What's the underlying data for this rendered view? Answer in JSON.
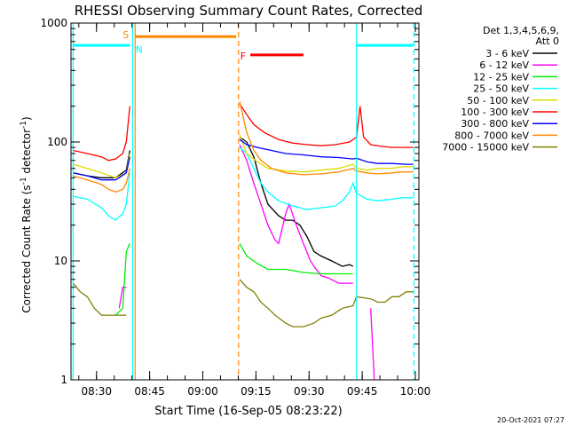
{
  "chart_data": {
    "type": "line",
    "title": "RHESSI Observing Summary Count Rates, Corrected",
    "xlabel": "Start Time (16-Sep-05 08:23:22)",
    "ylabel_main": "Corrected Count Rate (s",
    "ylabel_sup1": "-1",
    "ylabel_mid": " detector",
    "ylabel_sup2": "-1",
    "ylabel_end": ")",
    "yscale": "log",
    "ylim": [
      1,
      1000
    ],
    "xlim_minutes": [
      -0.6,
      97.6
    ],
    "y_ticks": [
      {
        "label": "1",
        "value": 1
      },
      {
        "label": "10",
        "value": 10
      },
      {
        "label": "100",
        "value": 100
      },
      {
        "label": "1000",
        "value": 1000
      }
    ],
    "x_ticks": [
      {
        "label": "08:30",
        "minute": 6.6
      },
      {
        "label": "08:45",
        "minute": 21.6
      },
      {
        "label": "09:00",
        "minute": 36.6
      },
      {
        "label": "09:15",
        "minute": 51.6
      },
      {
        "label": "09:30",
        "minute": 66.6
      },
      {
        "label": "09:45",
        "minute": 81.6
      },
      {
        "label": "10:00",
        "minute": 96.6
      }
    ],
    "legend_header": [
      "Det 1,3,4,5,6,9,",
      "Att 0"
    ],
    "series": [
      {
        "name": "3 - 6 keV",
        "color": "#000000",
        "segments": [
          [
            [
              0,
              55
            ],
            [
              4,
              52
            ],
            [
              8,
              50
            ],
            [
              12,
              50
            ],
            [
              15,
              58
            ],
            [
              16,
              85
            ]
          ],
          [
            [
              47,
              110
            ],
            [
              49,
              100
            ],
            [
              51,
              75
            ],
            [
              53,
              45
            ],
            [
              55,
              30
            ],
            [
              58,
              24
            ],
            [
              60,
              22
            ],
            [
              62,
              22
            ],
            [
              64,
              20
            ],
            [
              66,
              16
            ],
            [
              68,
              12
            ],
            [
              70,
              11
            ],
            [
              73,
              10
            ],
            [
              76,
              9
            ],
            [
              78,
              9.3
            ],
            [
              79,
              9
            ]
          ]
        ]
      },
      {
        "name": "6 - 12 keV",
        "color": "#ff00ff",
        "segments": [
          [
            [
              13,
              4
            ],
            [
              14,
              6
            ],
            [
              15,
              6
            ]
          ],
          [
            [
              47,
              95
            ],
            [
              49,
              70
            ],
            [
              51,
              45
            ],
            [
              53,
              30
            ],
            [
              55,
              20
            ],
            [
              57,
              15
            ],
            [
              58,
              14
            ],
            [
              60,
              25
            ],
            [
              61,
              30
            ],
            [
              63,
              20
            ],
            [
              65,
              14
            ],
            [
              67,
              10
            ],
            [
              68,
              9
            ],
            [
              70,
              7.5
            ],
            [
              72,
              7.2
            ],
            [
              75,
              6.5
            ],
            [
              78,
              6.5
            ],
            [
              79,
              6.5
            ]
          ],
          [
            [
              84,
              4
            ],
            [
              84.5,
              2
            ],
            [
              85,
              1
            ]
          ]
        ]
      },
      {
        "name": "12 - 25 keV",
        "color": "#00ee00",
        "segments": [
          [
            [
              12,
              3.5
            ],
            [
              14,
              4
            ],
            [
              15,
              12
            ],
            [
              16,
              14
            ]
          ],
          [
            [
              47,
              14
            ],
            [
              49,
              11
            ],
            [
              52,
              9.5
            ],
            [
              55,
              8.5
            ],
            [
              60,
              8.5
            ],
            [
              65,
              8
            ],
            [
              70,
              7.8
            ],
            [
              75,
              7.8
            ],
            [
              79,
              7.8
            ]
          ]
        ]
      },
      {
        "name": "25 - 50 keV",
        "color": "#00ffff",
        "segments": [
          [
            [
              0,
              35
            ],
            [
              4,
              33
            ],
            [
              8,
              28
            ],
            [
              10,
              24
            ],
            [
              12,
              22
            ],
            [
              14,
              25
            ],
            [
              15,
              30
            ],
            [
              16,
              55
            ]
          ],
          [
            [
              47,
              90
            ],
            [
              49,
              80
            ],
            [
              51,
              60
            ],
            [
              53,
              45
            ],
            [
              55,
              38
            ],
            [
              58,
              32
            ],
            [
              62,
              29
            ],
            [
              66,
              27
            ],
            [
              70,
              28
            ],
            [
              74,
              29
            ],
            [
              76,
              32
            ],
            [
              78,
              38
            ],
            [
              79,
              45
            ],
            [
              80,
              37
            ],
            [
              83,
              33
            ],
            [
              86,
              32
            ],
            [
              90,
              33
            ],
            [
              93,
              34
            ],
            [
              96,
              34
            ]
          ]
        ]
      },
      {
        "name": "50 - 100 keV",
        "color": "#dddd00",
        "segments": [
          [
            [
              0,
              65
            ],
            [
              4,
              60
            ],
            [
              8,
              55
            ],
            [
              12,
              50
            ],
            [
              15,
              55
            ],
            [
              16,
              80
            ]
          ],
          [
            [
              47,
              115
            ],
            [
              49,
              80
            ],
            [
              52,
              68
            ],
            [
              55,
              60
            ],
            [
              60,
              57
            ],
            [
              65,
              56
            ],
            [
              70,
              58
            ],
            [
              75,
              60
            ],
            [
              79,
              65
            ],
            [
              80,
              60
            ],
            [
              83,
              58
            ],
            [
              86,
              60
            ],
            [
              90,
              60
            ],
            [
              93,
              62
            ],
            [
              96,
              62
            ]
          ]
        ]
      },
      {
        "name": "100 - 300 keV",
        "color": "#ff0000",
        "segments": [
          [
            [
              0,
              85
            ],
            [
              4,
              80
            ],
            [
              8,
              75
            ],
            [
              10,
              70
            ],
            [
              12,
              72
            ],
            [
              14,
              80
            ],
            [
              15,
              100
            ],
            [
              16,
              200
            ]
          ],
          [
            [
              47,
              210
            ],
            [
              49,
              170
            ],
            [
              51,
              140
            ],
            [
              54,
              120
            ],
            [
              58,
              105
            ],
            [
              62,
              98
            ],
            [
              66,
              95
            ],
            [
              70,
              93
            ],
            [
              74,
              95
            ],
            [
              78,
              100
            ],
            [
              80,
              110
            ],
            [
              81,
              200
            ],
            [
              82,
              110
            ],
            [
              84,
              95
            ],
            [
              87,
              92
            ],
            [
              90,
              90
            ],
            [
              94,
              90
            ],
            [
              96,
              90
            ]
          ]
        ]
      },
      {
        "name": "300 - 800 keV",
        "color": "#0000ff",
        "segments": [
          [
            [
              0,
              55
            ],
            [
              4,
              52
            ],
            [
              8,
              48
            ],
            [
              12,
              48
            ],
            [
              15,
              55
            ],
            [
              16,
              75
            ]
          ],
          [
            [
              47,
              105
            ],
            [
              49,
              95
            ],
            [
              52,
              90
            ],
            [
              56,
              85
            ],
            [
              60,
              80
            ],
            [
              65,
              78
            ],
            [
              70,
              75
            ],
            [
              75,
              74
            ],
            [
              79,
              72
            ],
            [
              80,
              73
            ],
            [
              83,
              68
            ],
            [
              86,
              66
            ],
            [
              90,
              66
            ],
            [
              94,
              65
            ],
            [
              96,
              65
            ]
          ]
        ]
      },
      {
        "name": "800 - 7000 keV",
        "color": "#ff8800",
        "segments": [
          [
            [
              0,
              52
            ],
            [
              4,
              48
            ],
            [
              8,
              44
            ],
            [
              10,
              40
            ],
            [
              12,
              38
            ],
            [
              14,
              40
            ],
            [
              15,
              45
            ],
            [
              16,
              60
            ]
          ],
          [
            [
              47,
              220
            ],
            [
              49,
              120
            ],
            [
              51,
              85
            ],
            [
              53,
              70
            ],
            [
              56,
              60
            ],
            [
              60,
              55
            ],
            [
              65,
              53
            ],
            [
              70,
              54
            ],
            [
              75,
              56
            ],
            [
              79,
              60
            ],
            [
              80,
              57
            ],
            [
              83,
              55
            ],
            [
              86,
              54
            ],
            [
              90,
              55
            ],
            [
              93,
              56
            ],
            [
              96,
              56
            ]
          ]
        ]
      },
      {
        "name": "7000 - 15000 keV",
        "color": "#808000",
        "segments": [
          [
            [
              0,
              6.5
            ],
            [
              2,
              5.5
            ],
            [
              4,
              5
            ],
            [
              6,
              4
            ],
            [
              8,
              3.5
            ],
            [
              10,
              3.5
            ],
            [
              12,
              3.5
            ],
            [
              14,
              3.5
            ],
            [
              15,
              3.5
            ]
          ],
          [
            [
              47,
              7
            ],
            [
              49,
              6
            ],
            [
              51,
              5.5
            ],
            [
              53,
              4.5
            ],
            [
              55,
              4
            ],
            [
              57,
              3.5
            ],
            [
              60,
              3
            ],
            [
              62,
              2.8
            ],
            [
              65,
              2.8
            ],
            [
              68,
              3
            ],
            [
              70,
              3.3
            ],
            [
              73,
              3.5
            ],
            [
              76,
              4
            ],
            [
              79,
              4.2
            ],
            [
              80,
              5
            ],
            [
              84,
              4.8
            ],
            [
              86,
              4.5
            ],
            [
              88,
              4.5
            ],
            [
              90,
              5
            ],
            [
              92,
              5
            ],
            [
              94,
              5.5
            ],
            [
              96,
              5.5
            ]
          ]
        ]
      }
    ],
    "vertical_lines": [
      {
        "minute": 0,
        "color": "#00ffff",
        "style": "solid"
      },
      {
        "minute": 16.8,
        "color": "#00ffff",
        "style": "solid"
      },
      {
        "minute": 17.5,
        "color": "#ff8800",
        "style": "solid"
      },
      {
        "minute": 46.7,
        "color": "#ff8800",
        "style": "dashed"
      },
      {
        "minute": 80,
        "color": "#00ffff",
        "style": "solid"
      },
      {
        "minute": 96.2,
        "color": "#00ffff",
        "style": "dashed"
      }
    ],
    "flag_bars": [
      {
        "label": "",
        "start": 0,
        "end": 16,
        "level": 650,
        "color": "#00ffff"
      },
      {
        "label": "",
        "start": 17.5,
        "end": 46,
        "level": 770,
        "color": "#ff8800"
      },
      {
        "label": "",
        "start": 80,
        "end": 96,
        "level": 650,
        "color": "#00ffff"
      },
      {
        "label": "",
        "start": 50,
        "end": 65,
        "level": 540,
        "color": "#ff0000"
      }
    ],
    "flag_labels": [
      {
        "text": "S",
        "minute": 14.0,
        "level": 800,
        "color": "#ff8800"
      },
      {
        "text": "N",
        "minute": 17.6,
        "level": 600,
        "color": "#00ffff"
      },
      {
        "text": "F",
        "minute": 47.2,
        "level": 530,
        "color": "#ff0000"
      }
    ],
    "footer_date": "20-Oct-2021 07:27"
  }
}
